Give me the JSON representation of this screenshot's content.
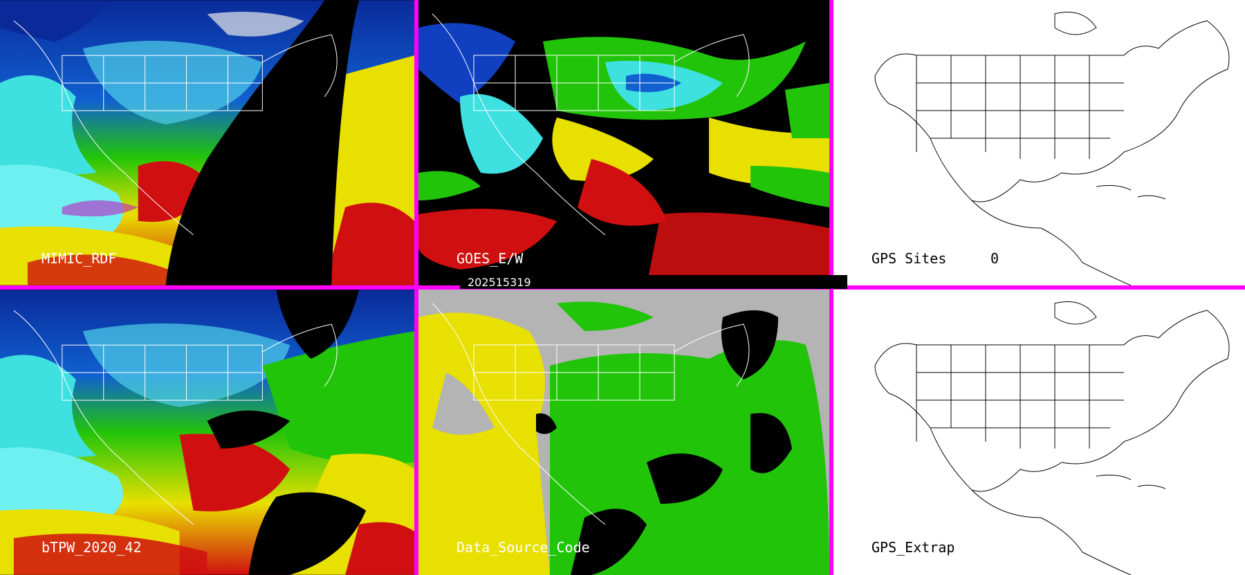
{
  "panels": {
    "p1": {
      "label": "MIMIC_RDF"
    },
    "p2": {
      "label": "GOES_E/W"
    },
    "p3": {
      "label": "GPS Sites",
      "count": "0"
    },
    "p4": {
      "label": "bTPW_2020_42"
    },
    "p5": {
      "label": "Data_Source_Code"
    },
    "p6": {
      "label": "GPS_Extrap"
    }
  },
  "timestamp": "202515319",
  "colors": {
    "separator": "#ff00ff",
    "ocean_cyan": "#3fe0e0",
    "deep_blue": "#0a2a9a",
    "green": "#22c40a",
    "yellow": "#e8e000",
    "red": "#d01010",
    "magenta": "#c020c0",
    "gray": "#b4b4b4",
    "black": "#000000",
    "white": "#ffffff"
  }
}
